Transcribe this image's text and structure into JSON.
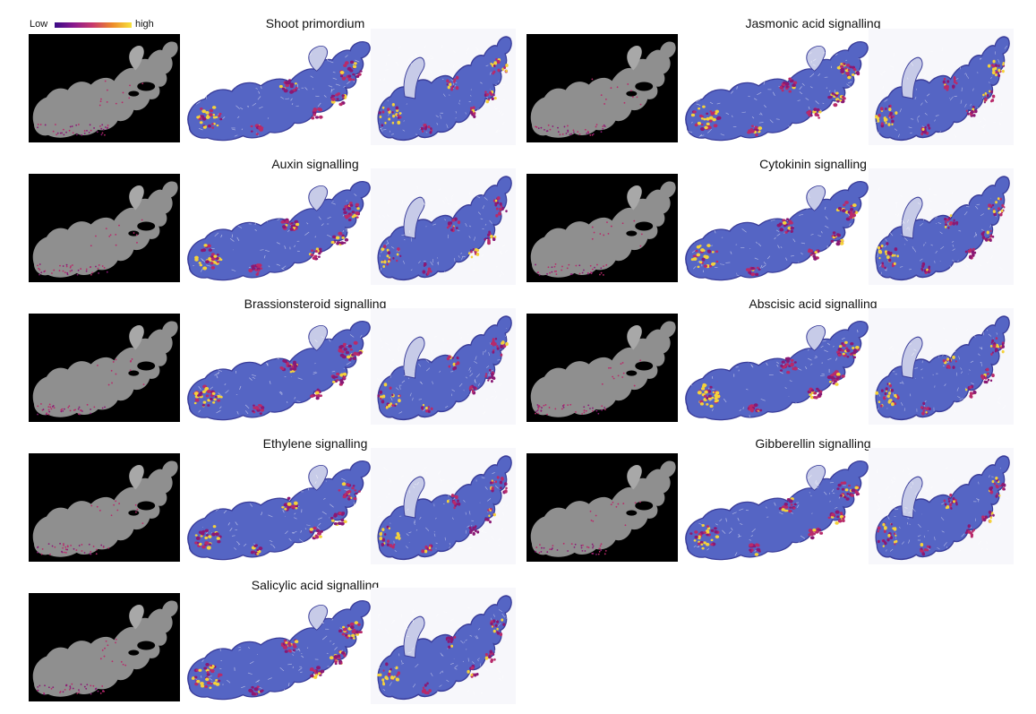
{
  "legend": {
    "low_label": "Low",
    "high_label": "high",
    "gradient_colors": [
      "#3a0b87",
      "#8a1a8e",
      "#c93a6b",
      "#ee8a2a",
      "#f7e23c"
    ]
  },
  "colors": {
    "black_bg": "#000000",
    "gray_tissue": "#8f8f8f",
    "blue_tissue": "#5565c4",
    "blue_light": "#c7cbe8",
    "purple_spot": "#8a1874",
    "magenta_spot": "#b82a6a",
    "yellow_spot": "#f5d23a",
    "outline": "#3a3d9a"
  },
  "panels": [
    {
      "title": "Shoot primordium"
    },
    {
      "title": "Jasmonic acid signalling"
    },
    {
      "title": "Auxin signalling"
    },
    {
      "title": "Cytokinin signalling"
    },
    {
      "title": "Brassionsteroid signalling"
    },
    {
      "title": "Abscisic acid signalling"
    },
    {
      "title": "Ethylene signalling"
    },
    {
      "title": "Gibberellin signalling"
    },
    {
      "title": "Salicylic acid signalling"
    }
  ]
}
